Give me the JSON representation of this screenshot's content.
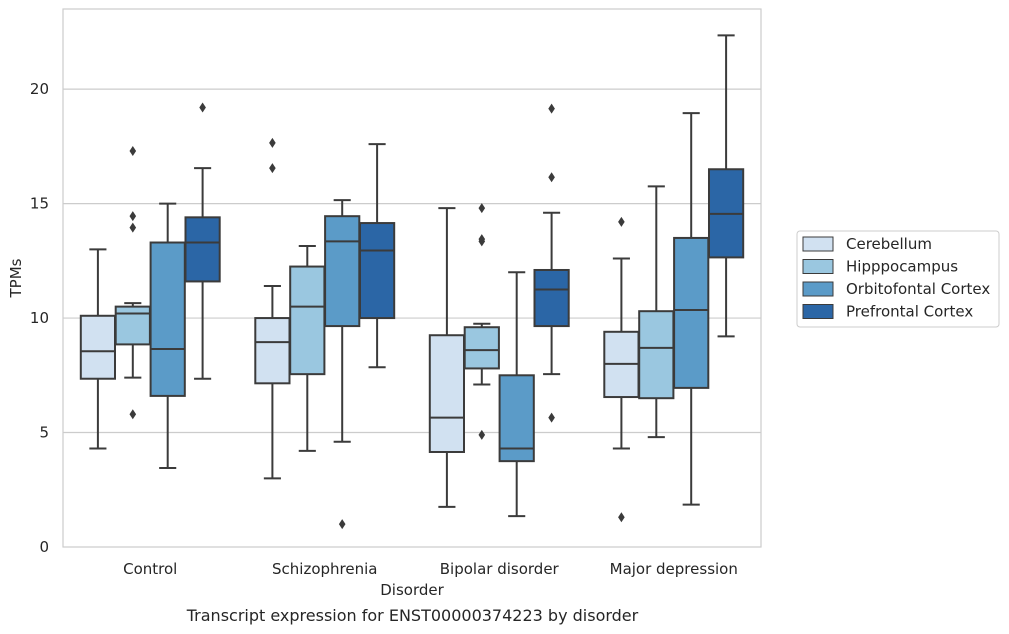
{
  "chart_data": {
    "type": "boxplot",
    "title": "",
    "caption": "Transcript expression for ENST00000374223 by disorder",
    "xlabel": "Disorder",
    "ylabel": "TPMs",
    "ylim": [
      0,
      23.5
    ],
    "yticks": [
      0,
      5,
      10,
      15,
      20
    ],
    "grid": "horizontal",
    "legend_position": "right",
    "categories": [
      "Control",
      "Schizophrenia",
      "Bipolar disorder",
      "Major depression"
    ],
    "series": [
      {
        "name": "Cerebellum",
        "color": "#d1e1f1",
        "boxes": [
          {
            "whislo": 4.3,
            "q1": 7.35,
            "med": 8.55,
            "q3": 10.1,
            "whishi": 13.0,
            "fliers": []
          },
          {
            "whislo": 3.0,
            "q1": 7.15,
            "med": 8.95,
            "q3": 10.0,
            "whishi": 11.4,
            "fliers": [
              16.55,
              17.65
            ]
          },
          {
            "whislo": 1.75,
            "q1": 4.15,
            "med": 5.65,
            "q3": 9.25,
            "whishi": 14.8,
            "fliers": []
          },
          {
            "whislo": 4.3,
            "q1": 6.55,
            "med": 8.0,
            "q3": 9.4,
            "whishi": 12.6,
            "fliers": [
              1.3,
              14.2
            ]
          }
        ]
      },
      {
        "name": "Hipppocampus",
        "color": "#9ac7e0",
        "boxes": [
          {
            "whislo": 7.4,
            "q1": 8.85,
            "med": 10.2,
            "q3": 10.5,
            "whishi": 10.65,
            "fliers": [
              5.8,
              13.95,
              14.45,
              17.3
            ]
          },
          {
            "whislo": 4.2,
            "q1": 7.55,
            "med": 10.5,
            "q3": 12.25,
            "whishi": 13.15,
            "fliers": []
          },
          {
            "whislo": 7.1,
            "q1": 7.8,
            "med": 8.6,
            "q3": 9.6,
            "whishi": 9.75,
            "fliers": [
              4.9,
              13.35,
              13.45,
              14.8
            ]
          },
          {
            "whislo": 4.8,
            "q1": 6.5,
            "med": 8.7,
            "q3": 10.3,
            "whishi": 15.75,
            "fliers": []
          }
        ]
      },
      {
        "name": "Orbitofontal Cortex",
        "color": "#5b9bc8",
        "boxes": [
          {
            "whislo": 3.45,
            "q1": 6.6,
            "med": 8.65,
            "q3": 13.3,
            "whishi": 15.0,
            "fliers": []
          },
          {
            "whislo": 4.6,
            "q1": 9.65,
            "med": 13.35,
            "q3": 14.45,
            "whishi": 15.15,
            "fliers": [
              1.0
            ]
          },
          {
            "whislo": 1.35,
            "q1": 3.75,
            "med": 4.3,
            "q3": 7.5,
            "whishi": 12.0,
            "fliers": []
          },
          {
            "whislo": 1.85,
            "q1": 6.95,
            "med": 10.35,
            "q3": 13.5,
            "whishi": 18.95,
            "fliers": []
          }
        ]
      },
      {
        "name": "Prefrontal Cortex",
        "color": "#2b66a6",
        "boxes": [
          {
            "whislo": 7.35,
            "q1": 11.6,
            "med": 13.3,
            "q3": 14.4,
            "whishi": 16.55,
            "fliers": [
              19.2
            ]
          },
          {
            "whislo": 7.85,
            "q1": 10.0,
            "med": 12.95,
            "q3": 14.15,
            "whishi": 17.6,
            "fliers": []
          },
          {
            "whislo": 7.55,
            "q1": 9.65,
            "med": 11.25,
            "q3": 12.1,
            "whishi": 14.6,
            "fliers": [
              5.65,
              16.15,
              19.15
            ]
          },
          {
            "whislo": 9.2,
            "q1": 12.65,
            "med": 14.55,
            "q3": 16.5,
            "whishi": 22.35,
            "fliers": []
          }
        ]
      }
    ]
  }
}
